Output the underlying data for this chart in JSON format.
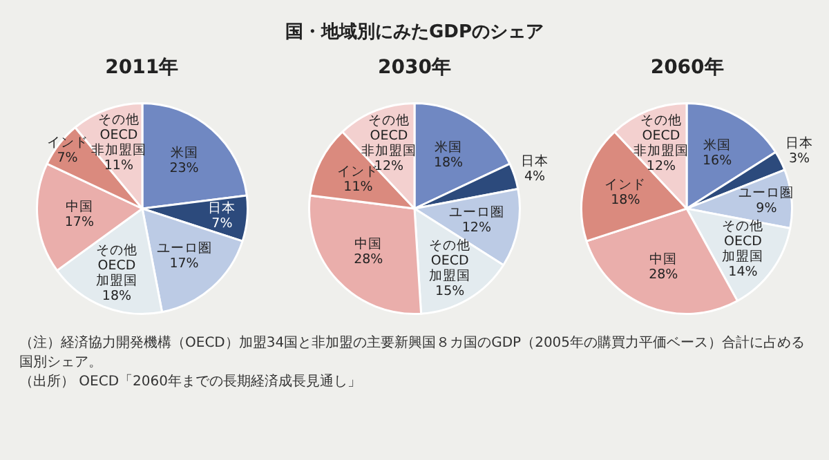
{
  "chart_data": [
    {
      "type": "other",
      "title": "国・地域別にみたGDPのシェア"
    },
    {
      "type": "pie",
      "title": "2011年",
      "categories": [
        "米国",
        "日本",
        "ユーロ圏",
        "その他 OECD 加盟国",
        "中国",
        "インド",
        "その他 OECD 非加盟国"
      ],
      "values": [
        23,
        7,
        17,
        18,
        17,
        7,
        11
      ],
      "value_labels": [
        "23%",
        "7%",
        "17%",
        "18%",
        "17%",
        "7%",
        "11%"
      ],
      "colors": [
        "#7088c2",
        "#2c4a7c",
        "#bccbe5",
        "#e3ebef",
        "#eaaeab",
        "#da8a7e",
        "#f3d0cf"
      ],
      "legend": false
    },
    {
      "type": "pie",
      "title": "2030年",
      "categories": [
        "米国",
        "日本",
        "ユーロ圏",
        "その他 OECD 加盟国",
        "中国",
        "インド",
        "その他 OECD 非加盟国"
      ],
      "values": [
        18,
        4,
        12,
        15,
        28,
        11,
        12
      ],
      "value_labels": [
        "18%",
        "4%",
        "12%",
        "15%",
        "28%",
        "11%",
        "12%"
      ],
      "colors": [
        "#7088c2",
        "#2c4a7c",
        "#bccbe5",
        "#e3ebef",
        "#eaaeab",
        "#da8a7e",
        "#f3d0cf"
      ],
      "legend": false
    },
    {
      "type": "pie",
      "title": "2060年",
      "categories": [
        "米国",
        "日本",
        "ユーロ圏",
        "その他 OECD 加盟国",
        "中国",
        "インド",
        "その他 OECD 非加盟国"
      ],
      "values": [
        16,
        3,
        9,
        14,
        28,
        18,
        12
      ],
      "value_labels": [
        "16%",
        "3%",
        "9%",
        "14%",
        "28%",
        "18%",
        "12%"
      ],
      "colors": [
        "#7088c2",
        "#2c4a7c",
        "#bccbe5",
        "#e3ebef",
        "#eaaeab",
        "#da8a7e",
        "#f3d0cf"
      ],
      "legend": false
    },
    {
      "type": "other",
      "annotations": [
        "（注）経済協力開発機構（OECD）加盟34国と非加盟の主要新興国８カ国のGDP（2005年の購買力平価ベース）合計に占める国別シェア。",
        "（出所） OECD「2060年までの長期経済成長見通し」"
      ]
    }
  ]
}
